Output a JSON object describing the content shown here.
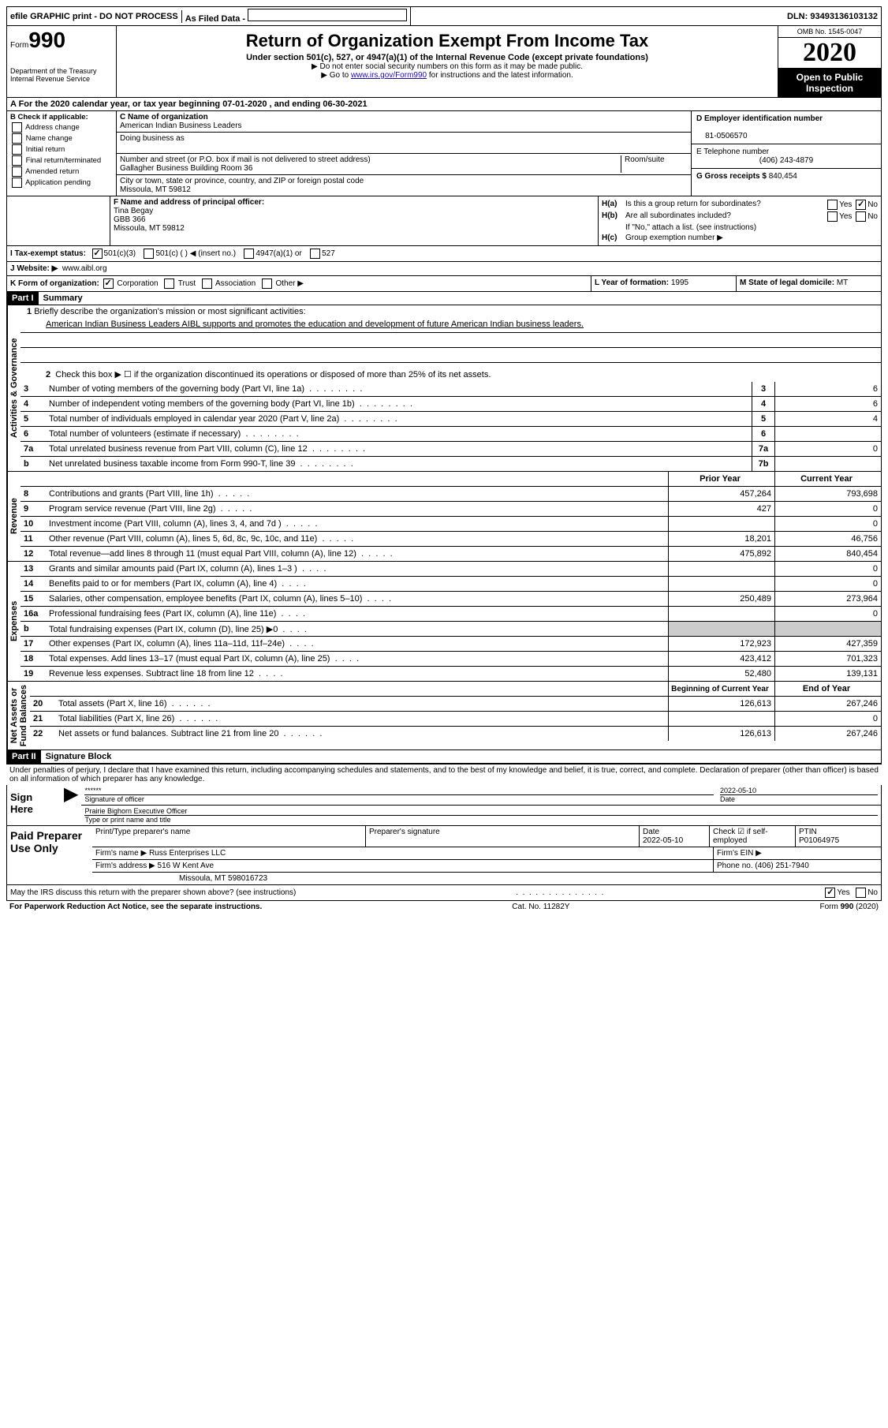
{
  "top": {
    "efile": "efile GRAPHIC print - DO NOT PROCESS",
    "filed": "As Filed Data -",
    "dln_label": "DLN:",
    "dln": "93493136103132"
  },
  "header": {
    "form_prefix": "Form",
    "form_num": "990",
    "dept": "Department of the Treasury\nInternal Revenue Service",
    "title": "Return of Organization Exempt From Income Tax",
    "sub1": "Under section 501(c), 527, or 4947(a)(1) of the Internal Revenue Code (except private foundations)",
    "sub2": "▶ Do not enter social security numbers on this form as it may be made public.",
    "sub3_pre": "▶ Go to ",
    "sub3_link": "www.irs.gov/Form990",
    "sub3_post": " for instructions and the latest information.",
    "omb": "OMB No. 1545-0047",
    "year": "2020",
    "open": "Open to Public Inspection"
  },
  "rowA": "A   For the 2020 calendar year, or tax year beginning 07-01-2020   , and ending 06-30-2021",
  "B": {
    "label": "B Check if applicable:",
    "opts": [
      "Address change",
      "Name change",
      "Initial return",
      "Final return/terminated",
      "Amended return",
      "Application pending"
    ]
  },
  "C": {
    "label_name": "C Name of organization",
    "name": "American Indian Business Leaders",
    "dba_label": "Doing business as",
    "dba": "",
    "street_label": "Number and street (or P.O. box if mail is not delivered to street address)",
    "room_label": "Room/suite",
    "street": "Gallagher Business Building Room 36",
    "city_label": "City or town, state or province, country, and ZIP or foreign postal code",
    "city": "Missoula, MT  59812"
  },
  "D": {
    "label": "D Employer identification number",
    "val": "81-0506570"
  },
  "E": {
    "label": "E Telephone number",
    "val": "(406) 243-4879"
  },
  "G": {
    "label": "G Gross receipts $",
    "val": "840,454"
  },
  "F": {
    "label": "F   Name and address of principal officer:",
    "l1": "Tina Begay",
    "l2": "GBB 366",
    "l3": "Missoula, MT  59812"
  },
  "H": {
    "a_label": "H(a)",
    "a_q": "Is this a group return for subordinates?",
    "b_label": "H(b)",
    "b_q": "Are all subordinates included?",
    "note": "If \"No,\" attach a list. (see instructions)",
    "c_label": "H(c)",
    "c_q": "Group exemption number ▶"
  },
  "I": {
    "label": "I   Tax-exempt status:",
    "o1": "501(c)(3)",
    "o2": "501(c) (  ) ◀ (insert no.)",
    "o3": "4947(a)(1) or",
    "o4": "527"
  },
  "J": {
    "label": "J   Website: ▶",
    "val": "www.aibl.org"
  },
  "K": {
    "label": "K Form of organization:",
    "opts": [
      "Corporation",
      "Trust",
      "Association",
      "Other ▶"
    ]
  },
  "L": {
    "label": "L Year of formation:",
    "val": "1995"
  },
  "M": {
    "label": "M State of legal domicile:",
    "val": "MT"
  },
  "partI": {
    "tag": "Part I",
    "title": "Summary",
    "vlabels": {
      "ag": "Activities & Governance",
      "rev": "Revenue",
      "exp": "Expenses",
      "nab": "Net Assets or\nFund Balances"
    },
    "l1_label": "1",
    "l1": "Briefly describe the organization's mission or most significant activities:",
    "l1_text": "American Indian Business Leaders AIBL supports and promotes the education and development of future American Indian business leaders.",
    "l2_num": "2",
    "l2": "Check this box ▶ ☐ if the organization discontinued its operations or disposed of more than 25% of its net assets.",
    "lines_ag": [
      {
        "n": "3",
        "d": "Number of voting members of the governing body (Part VI, line 1a)",
        "box": "3",
        "v": "6"
      },
      {
        "n": "4",
        "d": "Number of independent voting members of the governing body (Part VI, line 1b)",
        "box": "4",
        "v": "6"
      },
      {
        "n": "5",
        "d": "Total number of individuals employed in calendar year 2020 (Part V, line 2a)",
        "box": "5",
        "v": "4"
      },
      {
        "n": "6",
        "d": "Total number of volunteers (estimate if necessary)",
        "box": "6",
        "v": ""
      },
      {
        "n": "7a",
        "d": "Total unrelated business revenue from Part VIII, column (C), line 12",
        "box": "7a",
        "v": "0"
      },
      {
        "n": "b",
        "d": "Net unrelated business taxable income from Form 990-T, line 39",
        "box": "7b",
        "v": ""
      }
    ],
    "col_prior": "Prior Year",
    "col_current": "Current Year",
    "lines_rev": [
      {
        "n": "8",
        "d": "Contributions and grants (Part VIII, line 1h)",
        "p": "457,264",
        "c": "793,698"
      },
      {
        "n": "9",
        "d": "Program service revenue (Part VIII, line 2g)",
        "p": "427",
        "c": "0"
      },
      {
        "n": "10",
        "d": "Investment income (Part VIII, column (A), lines 3, 4, and 7d )",
        "p": "",
        "c": "0"
      },
      {
        "n": "11",
        "d": "Other revenue (Part VIII, column (A), lines 5, 6d, 8c, 9c, 10c, and 11e)",
        "p": "18,201",
        "c": "46,756"
      },
      {
        "n": "12",
        "d": "Total revenue—add lines 8 through 11 (must equal Part VIII, column (A), line 12)",
        "p": "475,892",
        "c": "840,454"
      }
    ],
    "lines_exp": [
      {
        "n": "13",
        "d": "Grants and similar amounts paid (Part IX, column (A), lines 1–3 )",
        "p": "",
        "c": "0"
      },
      {
        "n": "14",
        "d": "Benefits paid to or for members (Part IX, column (A), line 4)",
        "p": "",
        "c": "0"
      },
      {
        "n": "15",
        "d": "Salaries, other compensation, employee benefits (Part IX, column (A), lines 5–10)",
        "p": "250,489",
        "c": "273,964"
      },
      {
        "n": "16a",
        "d": "Professional fundraising fees (Part IX, column (A), line 11e)",
        "p": "",
        "c": "0"
      },
      {
        "n": "b",
        "d": "Total fundraising expenses (Part IX, column (D), line 25) ▶0",
        "p": "GRAY",
        "c": "GRAY"
      },
      {
        "n": "17",
        "d": "Other expenses (Part IX, column (A), lines 11a–11d, 11f–24e)",
        "p": "172,923",
        "c": "427,359"
      },
      {
        "n": "18",
        "d": "Total expenses. Add lines 13–17 (must equal Part IX, column (A), line 25)",
        "p": "423,412",
        "c": "701,323"
      },
      {
        "n": "19",
        "d": "Revenue less expenses. Subtract line 18 from line 12",
        "p": "52,480",
        "c": "139,131"
      }
    ],
    "col_boy": "Beginning of Current Year",
    "col_eoy": "End of Year",
    "lines_nab": [
      {
        "n": "20",
        "d": "Total assets (Part X, line 16)",
        "p": "126,613",
        "c": "267,246"
      },
      {
        "n": "21",
        "d": "Total liabilities (Part X, line 26)",
        "p": "",
        "c": "0"
      },
      {
        "n": "22",
        "d": "Net assets or fund balances. Subtract line 21 from line 20",
        "p": "126,613",
        "c": "267,246"
      }
    ]
  },
  "partII": {
    "tag": "Part II",
    "title": "Signature Block",
    "perjury": "Under penalties of perjury, I declare that I have examined this return, including accompanying schedules and statements, and to the best of my knowledge and belief, it is true, correct, and complete. Declaration of preparer (other than officer) is based on all information of which preparer has any knowledge.",
    "sign_here": "Sign Here",
    "sig_mask": "******",
    "sig_label": "Signature of officer",
    "sig_date": "2022-05-10",
    "date_label": "Date",
    "name_title": "Prairie Bighorn Executive Officer",
    "name_label": "Type or print name and title",
    "paid": "Paid Preparer Use Only",
    "h_print": "Print/Type preparer's name",
    "h_sig": "Preparer's signature",
    "h_date": "Date",
    "h_date_v": "2022-05-10",
    "h_check": "Check ☑ if self-employed",
    "h_ptin": "PTIN",
    "ptin": "P01064975",
    "firm_name_l": "Firm's name    ▶",
    "firm_name": "Russ Enterprises LLC",
    "firm_ein_l": "Firm's EIN ▶",
    "firm_addr_l": "Firm's address ▶",
    "firm_addr1": "516 W Kent Ave",
    "firm_addr2": "Missoula, MT  598016723",
    "phone_l": "Phone no.",
    "phone": "(406) 251-7940",
    "discuss": "May the IRS discuss this return with the preparer shown above? (see instructions)"
  },
  "footer": {
    "left": "For Paperwork Reduction Act Notice, see the separate instructions.",
    "mid": "Cat. No. 11282Y",
    "right": "Form 990 (2020)"
  }
}
